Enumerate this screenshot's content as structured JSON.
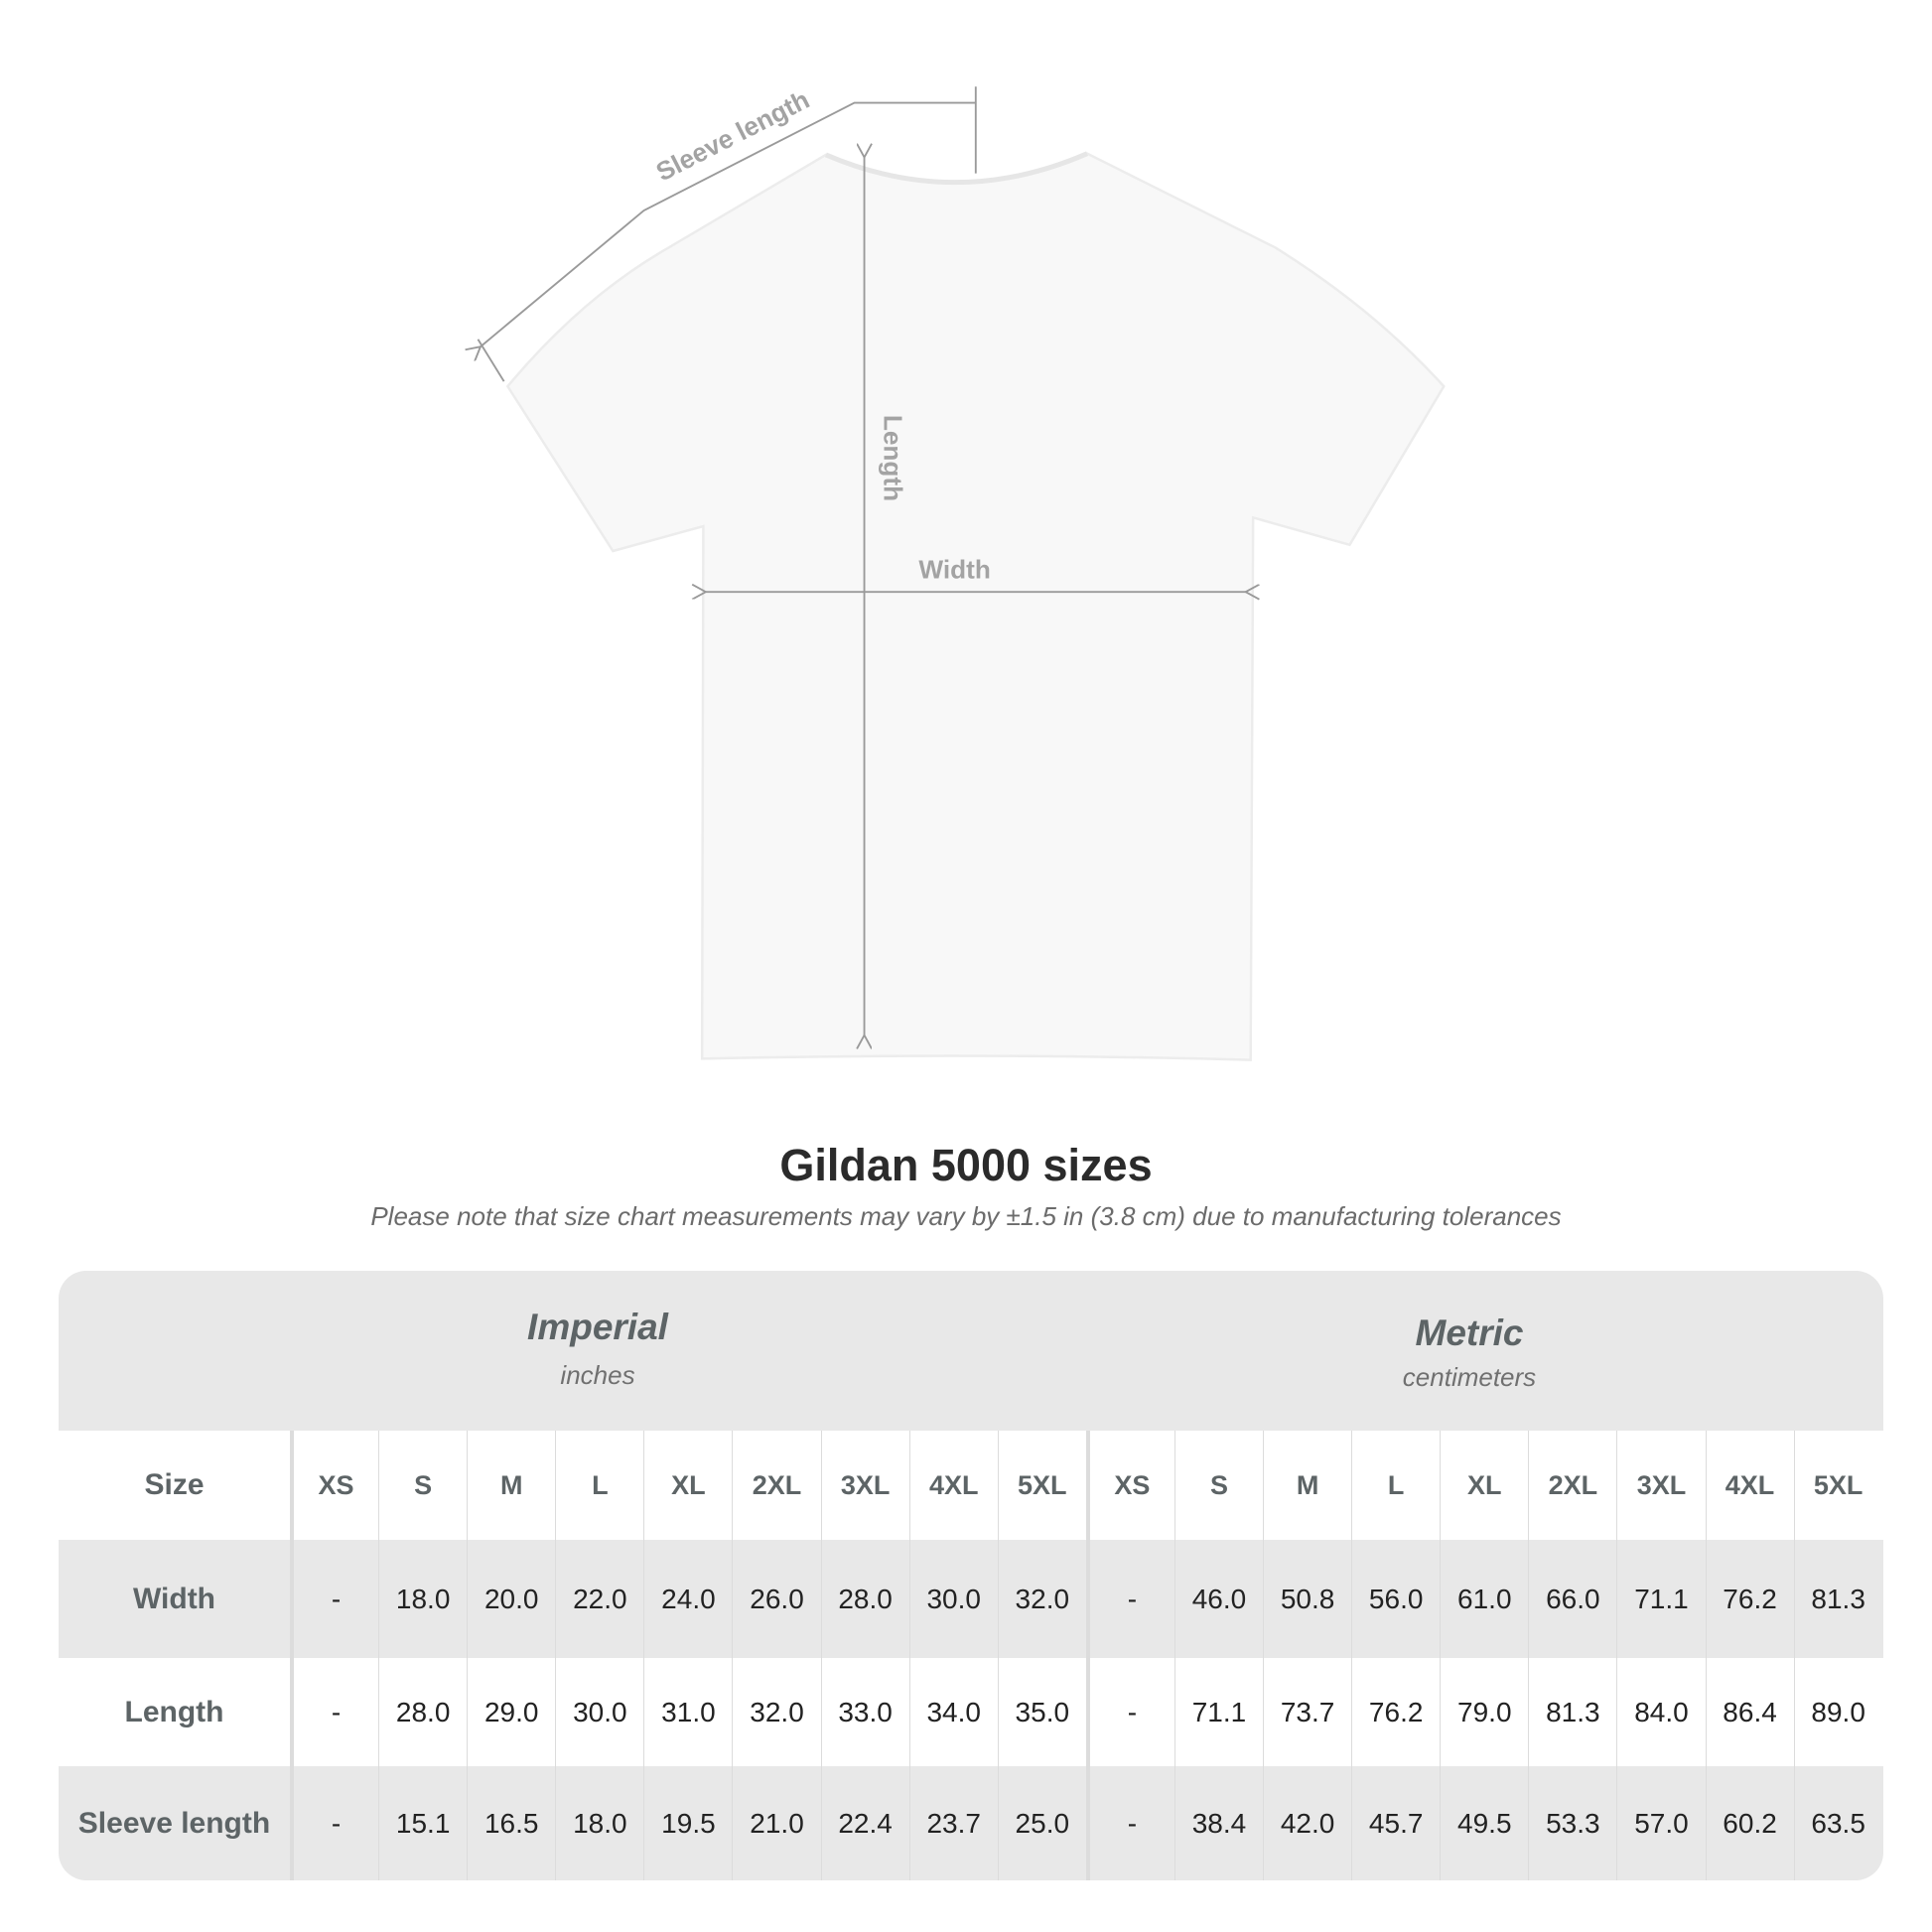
{
  "diagram": {
    "sleeve_label": "Sleeve length",
    "length_label": "Length",
    "width_label": "Width"
  },
  "title": "Gildan 5000 sizes",
  "subtitle": "Please note that size chart measurements may vary by ±1.5 in (3.8 cm) due to manufacturing tolerances",
  "table": {
    "imperial": {
      "name": "Imperial",
      "unit": "inches"
    },
    "metric": {
      "name": "Metric",
      "unit": "centimeters"
    },
    "size_label": "Size",
    "sizes": [
      "XS",
      "S",
      "M",
      "L",
      "XL",
      "2XL",
      "3XL",
      "4XL",
      "5XL"
    ],
    "rows": [
      {
        "label": "Width",
        "imperial": [
          "-",
          "18.0",
          "20.0",
          "22.0",
          "24.0",
          "26.0",
          "28.0",
          "30.0",
          "32.0"
        ],
        "metric": [
          "-",
          "46.0",
          "50.8",
          "56.0",
          "61.0",
          "66.0",
          "71.1",
          "76.2",
          "81.3"
        ]
      },
      {
        "label": "Length",
        "imperial": [
          "-",
          "28.0",
          "29.0",
          "30.0",
          "31.0",
          "32.0",
          "33.0",
          "34.0",
          "35.0"
        ],
        "metric": [
          "-",
          "71.1",
          "73.7",
          "76.2",
          "79.0",
          "81.3",
          "84.0",
          "86.4",
          "89.0"
        ]
      },
      {
        "label": "Sleeve length",
        "imperial": [
          "-",
          "15.1",
          "16.5",
          "18.0",
          "19.5",
          "21.0",
          "22.4",
          "23.7",
          "25.0"
        ],
        "metric": [
          "-",
          "38.4",
          "42.0",
          "45.7",
          "49.5",
          "53.3",
          "57.0",
          "60.2",
          "63.5"
        ]
      }
    ]
  }
}
